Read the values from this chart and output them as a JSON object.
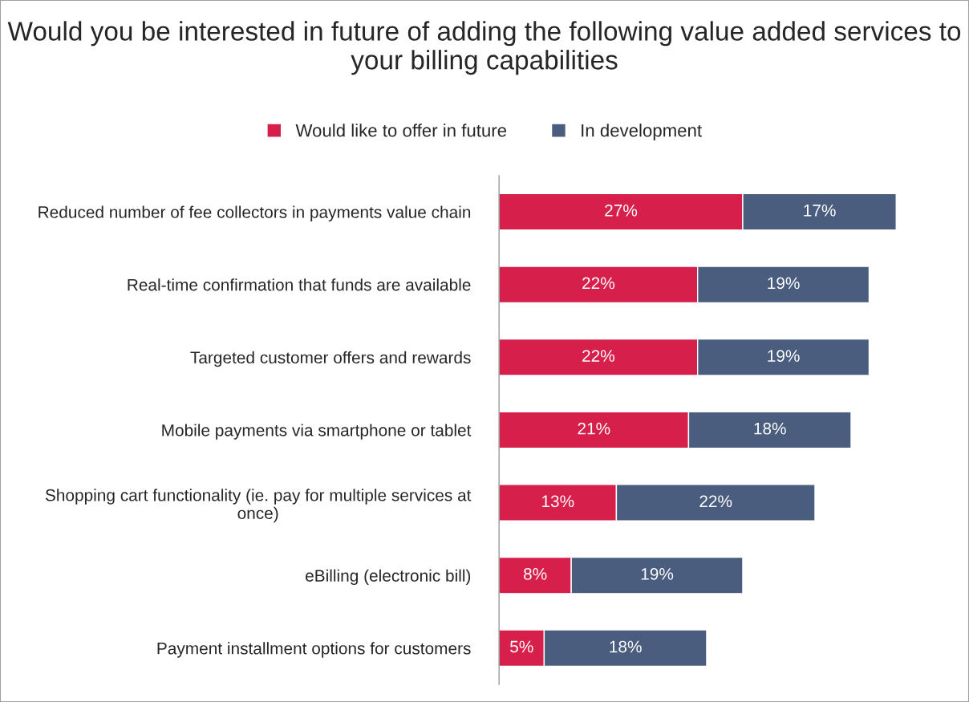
{
  "chart_data": {
    "type": "bar",
    "orientation": "horizontal",
    "stacked": true,
    "title": "Would you be interested in future of adding the following value added services to your billing capabilities",
    "categories": [
      "Reduced number of fee collectors in payments value chain",
      "Real-time confirmation that funds are available",
      "Targeted customer offers and rewards",
      "Mobile payments via smartphone or tablet",
      "Shopping cart functionality (ie. pay for multiple services at once)",
      "eBilling (electronic bill)",
      "Payment installment options for customers"
    ],
    "series": [
      {
        "name": "Would like to offer in future",
        "color": "#d61f4b",
        "values": [
          27,
          22,
          22,
          21,
          13,
          8,
          5
        ],
        "value_labels": [
          "27%",
          "22%",
          "22%",
          "21%",
          "13%",
          "8%",
          "5%"
        ]
      },
      {
        "name": "In development",
        "color": "#4a5d7e",
        "values": [
          17,
          19,
          19,
          18,
          22,
          19,
          18
        ],
        "value_labels": [
          "17%",
          "19%",
          "19%",
          "18%",
          "22%",
          "19%",
          "18%"
        ]
      }
    ],
    "legend": "top",
    "grid": false
  }
}
